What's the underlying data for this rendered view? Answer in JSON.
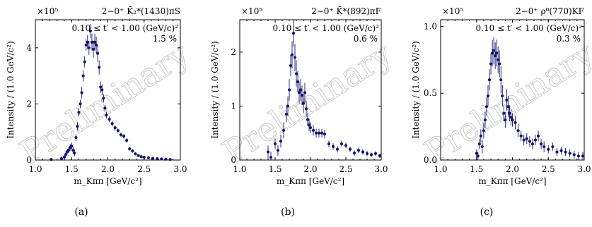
{
  "chart_data": [
    {
      "type": "scatter",
      "caption": "(a)",
      "wave_label": "2−0⁺ K̄₂*(1430)πS",
      "tprime_label": "0.10 ≤ t′ < 1.00 (GeV/c)²",
      "percent_label": "1.5 %",
      "scale_label": "×10⁵",
      "xlabel": "m_Kππ [GeV/c²]",
      "ylabel": "Intensity / (1.0 GeV/c²)",
      "watermark": "Preliminary",
      "xlim": [
        1.0,
        3.0
      ],
      "ylim": [
        0,
        5.0
      ],
      "xticks": [
        "1.0",
        "1.5",
        "2.0",
        "2.5",
        "3.0"
      ],
      "yticks": [
        "0",
        "2",
        "4"
      ],
      "ytick_values": [
        0,
        2,
        4
      ],
      "color": "#14146e",
      "points": [
        [
          1.22,
          0.02,
          0.05
        ],
        [
          1.36,
          0.05,
          0.08
        ],
        [
          1.4,
          0.1,
          0.08
        ],
        [
          1.42,
          0.2,
          0.1
        ],
        [
          1.44,
          0.3,
          0.1
        ],
        [
          1.46,
          0.35,
          0.1
        ],
        [
          1.48,
          0.45,
          0.12
        ],
        [
          1.5,
          0.5,
          0.12
        ],
        [
          1.52,
          0.35,
          0.12
        ],
        [
          1.54,
          0.25,
          0.12
        ],
        [
          1.56,
          0.8,
          0.12
        ],
        [
          1.58,
          1.2,
          0.15
        ],
        [
          1.6,
          1.7,
          0.15
        ],
        [
          1.62,
          2.0,
          0.15
        ],
        [
          1.64,
          2.4,
          0.2
        ],
        [
          1.66,
          3.0,
          0.2
        ],
        [
          1.68,
          3.5,
          0.2
        ],
        [
          1.7,
          4.1,
          0.2
        ],
        [
          1.72,
          4.2,
          0.25
        ],
        [
          1.74,
          4.0,
          0.25
        ],
        [
          1.76,
          4.6,
          0.25
        ],
        [
          1.78,
          4.2,
          0.3
        ],
        [
          1.8,
          3.95,
          0.3
        ],
        [
          1.82,
          4.2,
          0.3
        ],
        [
          1.84,
          4.1,
          0.3
        ],
        [
          1.86,
          3.8,
          0.3
        ],
        [
          1.88,
          3.3,
          0.25
        ],
        [
          1.9,
          2.6,
          0.2
        ],
        [
          1.92,
          2.5,
          0.2
        ],
        [
          1.94,
          2.2,
          0.15
        ],
        [
          1.96,
          1.85,
          0.12
        ],
        [
          1.98,
          1.6,
          0.12
        ],
        [
          2.02,
          1.45,
          0.1
        ],
        [
          2.06,
          1.3,
          0.1
        ],
        [
          2.1,
          1.15,
          0.1
        ],
        [
          2.14,
          1.05,
          0.08
        ],
        [
          2.18,
          0.9,
          0.08
        ],
        [
          2.22,
          0.85,
          0.08
        ],
        [
          2.26,
          0.7,
          0.08
        ],
        [
          2.3,
          0.4,
          0.06
        ],
        [
          2.34,
          0.32,
          0.06
        ],
        [
          2.38,
          0.22,
          0.05
        ],
        [
          2.42,
          0.16,
          0.05
        ],
        [
          2.46,
          0.12,
          0.05
        ],
        [
          2.5,
          0.1,
          0.04
        ],
        [
          2.56,
          0.08,
          0.04
        ],
        [
          2.62,
          0.06,
          0.04
        ],
        [
          2.68,
          0.05,
          0.04
        ],
        [
          2.74,
          0.04,
          0.03
        ],
        [
          2.8,
          0.03,
          0.03
        ],
        [
          2.86,
          0.02,
          0.03
        ]
      ]
    },
    {
      "type": "scatter",
      "caption": "(b)",
      "wave_label": "2−0⁺ K̄*(892)πF",
      "tprime_label": "0.10 ≤ t′ < 1.00 (GeV/c)²",
      "percent_label": "0.6 %",
      "scale_label": "×10⁵",
      "xlabel": "m_Kππ [GeV/c²]",
      "ylabel": "Intensity / (1.0 GeV/c²)",
      "watermark": "Preliminary",
      "xlim": [
        1.0,
        3.0
      ],
      "ylim": [
        0,
        2.6
      ],
      "xticks": [
        "1.0",
        "1.5",
        "2.0",
        "2.5",
        "3.0"
      ],
      "yticks": [
        "0",
        "1",
        "2"
      ],
      "ytick_values": [
        0,
        1,
        2
      ],
      "color": "#14146e",
      "points": [
        [
          1.4,
          0.15,
          0.12
        ],
        [
          1.44,
          0.05,
          0.1
        ],
        [
          1.5,
          0.3,
          0.1
        ],
        [
          1.54,
          0.18,
          0.1
        ],
        [
          1.58,
          0.35,
          0.12
        ],
        [
          1.62,
          0.55,
          0.15
        ],
        [
          1.66,
          0.85,
          0.15
        ],
        [
          1.68,
          1.0,
          0.18
        ],
        [
          1.7,
          1.3,
          0.2
        ],
        [
          1.72,
          1.75,
          0.2
        ],
        [
          1.74,
          1.95,
          0.25
        ],
        [
          1.76,
          2.35,
          0.25
        ],
        [
          1.78,
          1.9,
          0.25
        ],
        [
          1.8,
          1.6,
          0.25
        ],
        [
          1.82,
          1.45,
          0.2
        ],
        [
          1.84,
          1.25,
          0.2
        ],
        [
          1.86,
          1.3,
          0.2
        ],
        [
          1.88,
          1.2,
          0.18
        ],
        [
          1.9,
          1.05,
          0.18
        ],
        [
          1.92,
          1.25,
          0.18
        ],
        [
          1.94,
          0.95,
          0.15
        ],
        [
          1.96,
          0.75,
          0.12
        ],
        [
          1.98,
          0.65,
          0.12
        ],
        [
          2.0,
          0.6,
          0.1
        ],
        [
          2.04,
          0.55,
          0.1
        ],
        [
          2.08,
          0.5,
          0.08
        ],
        [
          2.12,
          0.5,
          0.08
        ],
        [
          2.16,
          0.5,
          0.08
        ],
        [
          2.2,
          0.48,
          0.08
        ],
        [
          2.26,
          0.3,
          0.06
        ],
        [
          2.32,
          0.25,
          0.06
        ],
        [
          2.38,
          0.2,
          0.06
        ],
        [
          2.44,
          0.3,
          0.06
        ],
        [
          2.5,
          0.27,
          0.05
        ],
        [
          2.56,
          0.2,
          0.05
        ],
        [
          2.62,
          0.13,
          0.05
        ],
        [
          2.68,
          0.18,
          0.05
        ],
        [
          2.74,
          0.15,
          0.05
        ],
        [
          2.8,
          0.12,
          0.05
        ],
        [
          2.86,
          0.1,
          0.04
        ],
        [
          2.92,
          0.12,
          0.04
        ],
        [
          2.98,
          0.08,
          0.04
        ]
      ]
    },
    {
      "type": "scatter",
      "caption": "(c)",
      "wave_label": "2−0⁺ ρ⁰(770)KF",
      "tprime_label": "0.10 ≤ t′ < 1.00 (GeV/c)²",
      "percent_label": "0.3 %",
      "scale_label": "×10⁵",
      "xlabel": "m_Kππ [GeV/c²]",
      "ylabel": "Intensity / (1.0 GeV/c²)",
      "watermark": "Preliminary",
      "xlim": [
        1.0,
        3.0
      ],
      "ylim": [
        0,
        1.05
      ],
      "xticks": [
        "1.0",
        "1.5",
        "2.0",
        "2.5",
        "3.0"
      ],
      "yticks": [
        "0.0",
        "0.5",
        "1.0"
      ],
      "ytick_values": [
        0,
        0.5,
        1.0
      ],
      "color": "#14146e",
      "points": [
        [
          1.5,
          0.05,
          0.03
        ],
        [
          1.52,
          0.03,
          0.03
        ],
        [
          1.54,
          0.12,
          0.04
        ],
        [
          1.56,
          0.18,
          0.05
        ],
        [
          1.58,
          0.1,
          0.05
        ],
        [
          1.6,
          0.22,
          0.06
        ],
        [
          1.62,
          0.3,
          0.06
        ],
        [
          1.64,
          0.4,
          0.07
        ],
        [
          1.66,
          0.48,
          0.08
        ],
        [
          1.68,
          0.6,
          0.08
        ],
        [
          1.7,
          0.72,
          0.08
        ],
        [
          1.72,
          0.8,
          0.1
        ],
        [
          1.74,
          0.82,
          0.1
        ],
        [
          1.76,
          0.78,
          0.1
        ],
        [
          1.78,
          0.8,
          0.1
        ],
        [
          1.8,
          0.75,
          0.1
        ],
        [
          1.82,
          0.72,
          0.1
        ],
        [
          1.84,
          0.6,
          0.1
        ],
        [
          1.86,
          0.48,
          0.08
        ],
        [
          1.88,
          0.35,
          0.06
        ],
        [
          1.9,
          0.3,
          0.06
        ],
        [
          1.92,
          0.45,
          0.08
        ],
        [
          1.94,
          0.4,
          0.08
        ],
        [
          1.96,
          0.35,
          0.06
        ],
        [
          1.98,
          0.32,
          0.06
        ],
        [
          2.0,
          0.3,
          0.05
        ],
        [
          2.04,
          0.28,
          0.05
        ],
        [
          2.08,
          0.22,
          0.05
        ],
        [
          2.12,
          0.18,
          0.04
        ],
        [
          2.16,
          0.15,
          0.04
        ],
        [
          2.2,
          0.16,
          0.04
        ],
        [
          2.24,
          0.14,
          0.04
        ],
        [
          2.28,
          0.12,
          0.04
        ],
        [
          2.32,
          0.15,
          0.04
        ],
        [
          2.36,
          0.18,
          0.04
        ],
        [
          2.4,
          0.12,
          0.04
        ],
        [
          2.44,
          0.1,
          0.04
        ],
        [
          2.5,
          0.08,
          0.03
        ],
        [
          2.56,
          0.1,
          0.03
        ],
        [
          2.62,
          0.06,
          0.03
        ],
        [
          2.68,
          0.07,
          0.03
        ],
        [
          2.74,
          0.06,
          0.03
        ],
        [
          2.8,
          0.05,
          0.03
        ],
        [
          2.86,
          0.04,
          0.03
        ],
        [
          2.92,
          0.03,
          0.03
        ],
        [
          2.98,
          0.03,
          0.03
        ]
      ]
    }
  ]
}
